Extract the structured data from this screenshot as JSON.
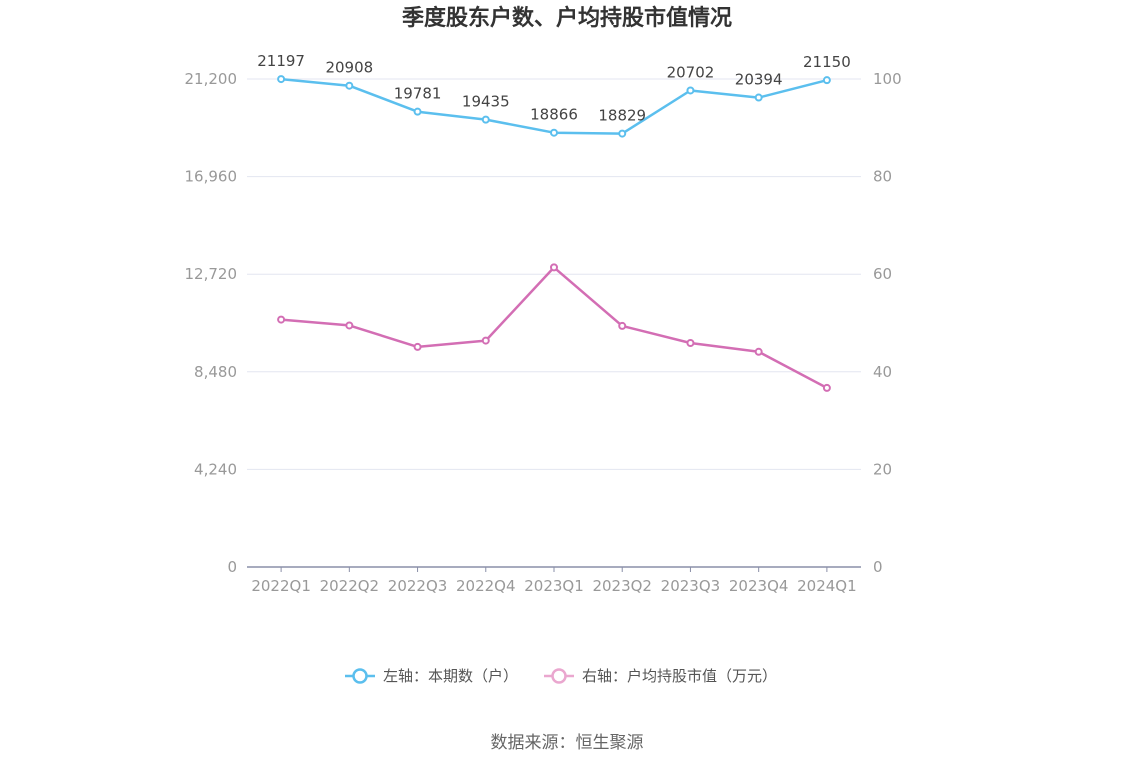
{
  "chart_data": {
    "type": "line",
    "title": "季度股东户数、户均持股市值情况",
    "categories": [
      "2022Q1",
      "2022Q2",
      "2022Q3",
      "2022Q4",
      "2023Q1",
      "2023Q2",
      "2023Q3",
      "2023Q4",
      "2024Q1"
    ],
    "left_axis": {
      "min": 0,
      "max": 21200,
      "ticks": [
        0,
        4240,
        8480,
        12720,
        16960,
        21200
      ],
      "tick_labels": [
        "0",
        "4,240",
        "8,480",
        "12,720",
        "16,960",
        "21,200"
      ]
    },
    "right_axis": {
      "min": 0,
      "max": 100,
      "ticks": [
        0,
        20,
        40,
        60,
        80,
        100
      ],
      "tick_labels": [
        "0",
        "20",
        "40",
        "60",
        "80",
        "100"
      ]
    },
    "series": [
      {
        "name": "左轴：本期数（户）",
        "axis": "left",
        "color": "#5bbfee",
        "values": [
          21197,
          20908,
          19781,
          19435,
          18866,
          18829,
          20702,
          20394,
          21150
        ],
        "labels": [
          "21197",
          "20908",
          "19781",
          "19435",
          "18866",
          "18829",
          "20702",
          "20394",
          "21150"
        ]
      },
      {
        "name": "右轴：户均持股市值（万元）",
        "axis": "right",
        "color": "#d36eb4",
        "values": [
          50.7,
          49.5,
          45.1,
          46.4,
          61.4,
          49.4,
          45.9,
          44.1,
          36.7
        ]
      }
    ],
    "grid": true,
    "legend_position": "bottom-center"
  },
  "source": "数据来源：恒生聚源"
}
